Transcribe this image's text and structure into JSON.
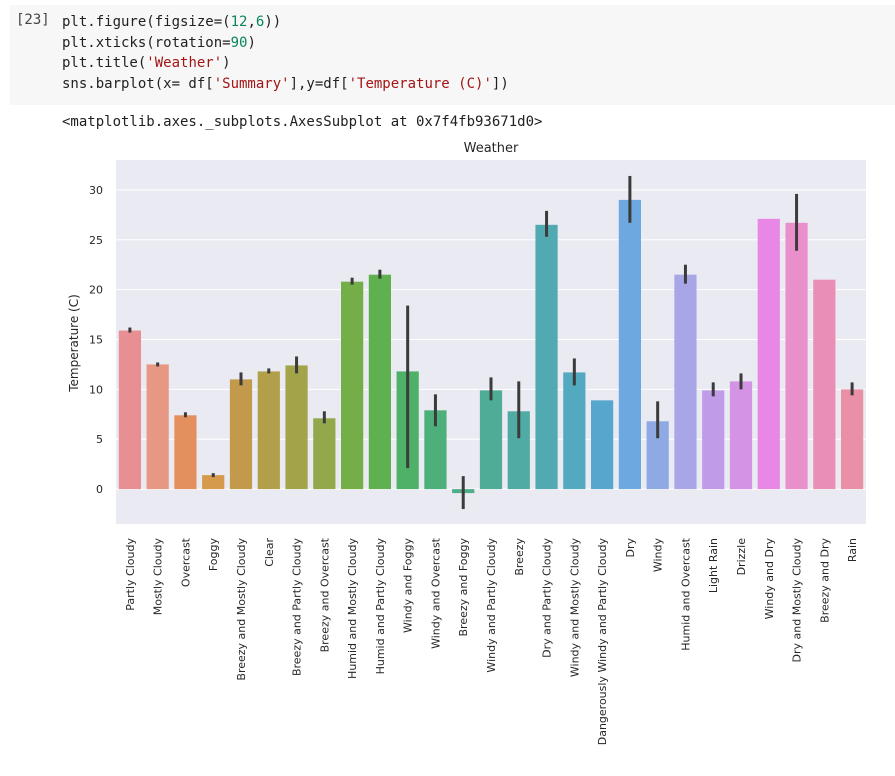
{
  "cell": {
    "prompt": "[23]",
    "code_lines": [
      [
        {
          "t": "plt.figure(figsize=(",
          "c": "plain"
        },
        {
          "t": "12",
          "c": "num"
        },
        {
          "t": ",",
          "c": "plain"
        },
        {
          "t": "6",
          "c": "num"
        },
        {
          "t": "))",
          "c": "plain"
        }
      ],
      [
        {
          "t": "plt.xticks(rotation=",
          "c": "plain"
        },
        {
          "t": "90",
          "c": "num"
        },
        {
          "t": ")",
          "c": "plain"
        }
      ],
      [
        {
          "t": "plt.title(",
          "c": "plain"
        },
        {
          "t": "'Weather'",
          "c": "str"
        },
        {
          "t": ")",
          "c": "plain"
        }
      ],
      [
        {
          "t": "sns.barplot(x= df[",
          "c": "plain"
        },
        {
          "t": "'Summary'",
          "c": "str"
        },
        {
          "t": "],y=df[",
          "c": "plain"
        },
        {
          "t": "'Temperature (C)'",
          "c": "str"
        },
        {
          "t": "])",
          "c": "plain"
        }
      ]
    ],
    "output_text": "<matplotlib.axes._subplots.AxesSubplot at 0x7f4fb93671d0>"
  },
  "chart_data": {
    "type": "bar",
    "title": "Weather",
    "xlabel": "",
    "ylabel": "Temperature (C)",
    "ylim": [
      -3.5,
      33
    ],
    "yticks": [
      0,
      5,
      10,
      15,
      20,
      25,
      30
    ],
    "grid": true,
    "categories": [
      "Partly Cloudy",
      "Mostly Cloudy",
      "Overcast",
      "Foggy",
      "Breezy and Mostly Cloudy",
      "Clear",
      "Breezy and Partly Cloudy",
      "Breezy and Overcast",
      "Humid and Mostly Cloudy",
      "Humid and Partly Cloudy",
      "Windy and Foggy",
      "Windy and Overcast",
      "Breezy and Foggy",
      "Windy and Partly Cloudy",
      "Breezy",
      "Dry and Partly Cloudy",
      "Windy and Mostly Cloudy",
      "Dangerously Windy and Partly Cloudy",
      "Dry",
      "Windy",
      "Humid and Overcast",
      "Light Rain",
      "Drizzle",
      "Windy and Dry",
      "Dry and Mostly Cloudy",
      "Breezy and Dry",
      "Rain"
    ],
    "values": [
      15.9,
      12.5,
      7.4,
      1.4,
      11.0,
      11.8,
      12.4,
      7.1,
      20.8,
      21.5,
      11.8,
      7.9,
      -0.4,
      9.9,
      7.8,
      26.5,
      11.7,
      8.9,
      29.0,
      6.8,
      21.5,
      9.9,
      10.8,
      27.1,
      26.7,
      21.0,
      10.0
    ],
    "ci_low": [
      15.7,
      12.3,
      7.2,
      1.2,
      10.4,
      11.6,
      11.6,
      6.6,
      20.5,
      21.1,
      2.1,
      6.3,
      -2.0,
      8.9,
      5.1,
      25.3,
      10.4,
      8.9,
      26.7,
      5.1,
      20.6,
      9.3,
      10.0,
      27.1,
      23.9,
      21.0,
      9.4
    ],
    "ci_high": [
      16.2,
      12.7,
      7.7,
      1.6,
      11.7,
      12.1,
      13.3,
      7.8,
      21.2,
      22.0,
      18.4,
      9.5,
      1.3,
      11.2,
      10.8,
      27.9,
      13.1,
      8.9,
      31.4,
      8.8,
      22.5,
      10.7,
      11.6,
      27.1,
      29.6,
      21.0,
      10.7
    ],
    "colors": [
      "#e88f93",
      "#e79882",
      "#e48f5e",
      "#d59a4c",
      "#c39a4b",
      "#b29f4a",
      "#a3a34a",
      "#93a84a",
      "#74ae48",
      "#5fb14f",
      "#4fb067",
      "#4daf7a",
      "#4fae8a",
      "#4fac97",
      "#50aba5",
      "#51aab1",
      "#53a9bf",
      "#56a6cd",
      "#6ea8e0",
      "#8ea9e3",
      "#a9a6e8",
      "#c09be7",
      "#d493e5",
      "#e987e6",
      "#e98fcb",
      "#e98fb6",
      "#e98fa6"
    ]
  }
}
